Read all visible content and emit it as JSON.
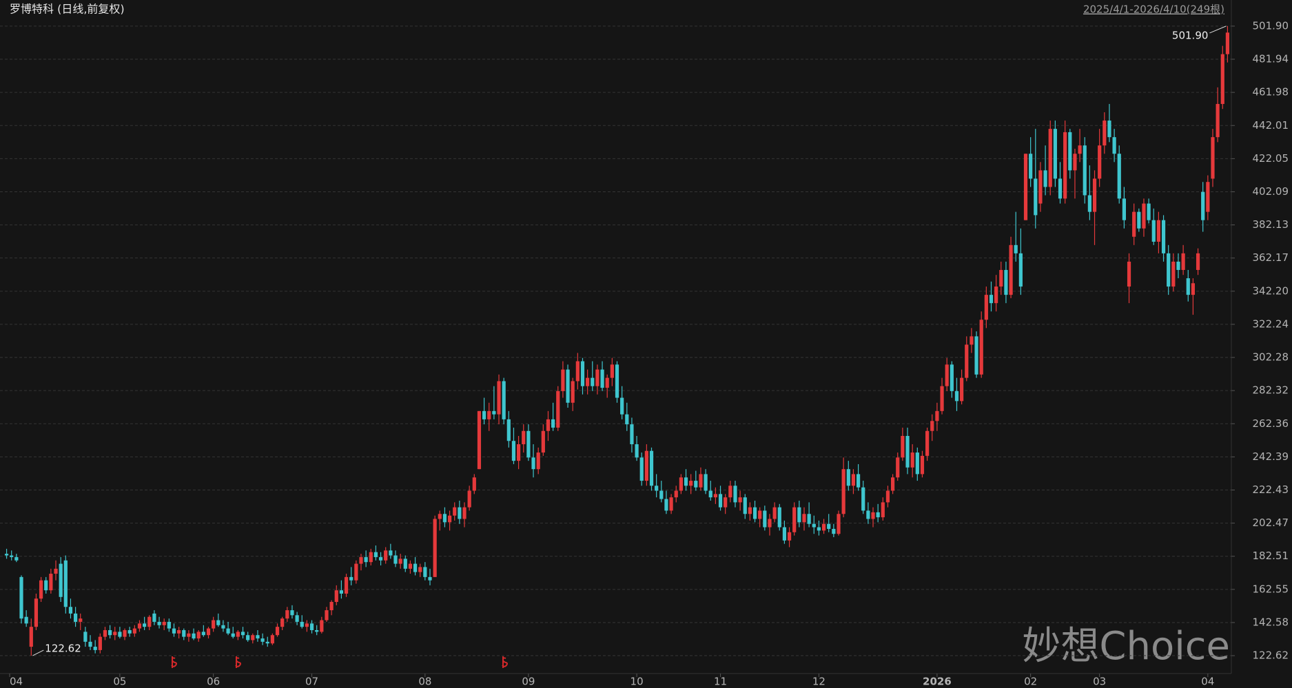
{
  "chart_data": {
    "type": "candlestick",
    "title": "罗博特科 (日线,前复权)",
    "range_text": "2025/4/1-2026/4/10(249根)",
    "watermark": "妙想Choice",
    "max_label": "501.90",
    "min_label": "122.62",
    "up_color": "#e5393b",
    "down_color": "#3fc6cf",
    "grid": true,
    "ylim": [
      113.1,
      508.5
    ],
    "yticks": [
      {
        "value": 501.9,
        "label": "501.90"
      },
      481.94,
      461.98,
      442.01,
      422.05,
      402.09,
      382.13,
      362.17,
      {
        "value": 342.2,
        "label": "342.20"
      },
      322.24,
      302.28,
      282.32,
      262.36,
      242.39,
      222.43,
      202.47,
      182.51,
      162.55,
      142.58,
      122.62
    ],
    "xticks": [
      {
        "value": 0,
        "label": "04"
      },
      {
        "value": 23,
        "label": "05"
      },
      {
        "value": 42,
        "label": "06"
      },
      {
        "value": 62,
        "label": "07"
      },
      {
        "value": 85,
        "label": "08"
      },
      {
        "value": 106,
        "label": "09"
      },
      {
        "value": 128,
        "label": "10"
      },
      {
        "value": 145,
        "label": "11"
      },
      {
        "value": 165,
        "label": "12"
      },
      {
        "value": 189,
        "label": "2026"
      },
      {
        "value": 208,
        "label": "02"
      },
      {
        "value": 222,
        "label": "03"
      },
      {
        "value": 244,
        "label": "04"
      }
    ],
    "ohlc": [
      [
        184,
        187,
        181,
        183
      ],
      [
        183,
        186,
        180,
        182
      ],
      [
        182,
        184,
        179,
        180
      ],
      [
        170,
        171,
        142,
        145
      ],
      [
        146,
        150,
        140,
        142
      ],
      [
        128,
        145,
        122.62,
        140
      ],
      [
        140,
        160,
        138,
        157
      ],
      [
        157,
        170,
        155,
        168
      ],
      [
        168,
        170,
        160,
        162
      ],
      [
        162,
        175,
        160,
        172
      ],
      [
        172,
        180,
        168,
        175
      ],
      [
        178,
        182,
        155,
        158
      ],
      [
        180,
        183,
        148,
        152
      ],
      [
        152,
        157,
        145,
        148
      ],
      [
        148,
        152,
        140,
        143
      ],
      [
        143,
        148,
        138,
        145
      ],
      [
        137,
        140,
        128,
        131
      ],
      [
        131,
        135,
        126,
        128
      ],
      [
        128,
        132,
        124,
        126
      ],
      [
        126,
        136,
        124,
        134
      ],
      [
        134,
        140,
        132,
        138
      ],
      [
        138,
        141,
        133,
        135
      ],
      [
        135,
        140,
        132,
        137
      ],
      [
        137,
        140,
        133,
        134
      ],
      [
        134,
        139,
        132,
        138
      ],
      [
        138,
        140,
        134,
        136
      ],
      [
        136,
        141,
        134,
        139
      ],
      [
        139,
        144,
        137,
        142
      ],
      [
        142,
        146,
        138,
        140
      ],
      [
        140,
        147,
        138,
        146
      ],
      [
        148,
        150,
        141,
        143
      ],
      [
        143,
        146,
        139,
        141
      ],
      [
        141,
        145,
        138,
        143
      ],
      [
        143,
        145,
        137,
        139
      ],
      [
        139,
        142,
        134,
        136
      ],
      [
        136,
        140,
        133,
        138
      ],
      [
        138,
        139,
        132,
        134
      ],
      [
        134,
        138,
        131,
        136
      ],
      [
        136,
        139,
        132,
        133
      ],
      [
        133,
        138,
        131,
        137
      ],
      [
        137,
        141,
        134,
        135
      ],
      [
        135,
        140,
        133,
        139
      ],
      [
        139,
        146,
        137,
        144
      ],
      [
        144,
        148,
        140,
        141
      ],
      [
        141,
        144,
        137,
        139
      ],
      [
        139,
        143,
        135,
        136
      ],
      [
        136,
        140,
        133,
        134
      ],
      [
        134,
        138,
        132,
        137
      ],
      [
        137,
        140,
        133,
        135
      ],
      [
        135,
        137,
        131,
        132
      ],
      [
        132,
        136,
        130,
        135
      ],
      [
        135,
        138,
        131,
        133
      ],
      [
        133,
        136,
        129,
        131
      ],
      [
        131,
        134,
        128,
        130
      ],
      [
        130,
        136,
        129,
        135
      ],
      [
        135,
        142,
        134,
        140
      ],
      [
        140,
        146,
        138,
        145
      ],
      [
        145,
        152,
        143,
        150
      ],
      [
        150,
        153,
        145,
        147
      ],
      [
        147,
        149,
        141,
        143
      ],
      [
        143,
        147,
        139,
        140
      ],
      [
        140,
        144,
        137,
        142
      ],
      [
        142,
        144,
        136,
        138
      ],
      [
        138,
        141,
        135,
        137
      ],
      [
        137,
        146,
        136,
        144
      ],
      [
        144,
        152,
        143,
        150
      ],
      [
        150,
        156,
        147,
        155
      ],
      [
        155,
        165,
        153,
        162
      ],
      [
        162,
        168,
        157,
        160
      ],
      [
        160,
        172,
        158,
        170
      ],
      [
        170,
        176,
        165,
        168
      ],
      [
        168,
        180,
        166,
        178
      ],
      [
        178,
        184,
        174,
        182
      ],
      [
        182,
        186,
        176,
        179
      ],
      [
        179,
        187,
        177,
        185
      ],
      [
        185,
        189,
        180,
        182
      ],
      [
        182,
        185,
        177,
        180
      ],
      [
        180,
        188,
        178,
        186
      ],
      [
        186,
        190,
        181,
        183
      ],
      [
        183,
        186,
        176,
        178
      ],
      [
        178,
        184,
        175,
        181
      ],
      [
        181,
        183,
        173,
        175
      ],
      [
        175,
        180,
        172,
        178
      ],
      [
        178,
        182,
        171,
        173
      ],
      [
        173,
        178,
        170,
        176
      ],
      [
        176,
        179,
        168,
        170
      ],
      [
        170,
        175,
        165,
        168
      ],
      [
        170,
        207,
        170,
        205
      ],
      [
        205,
        210,
        198,
        208
      ],
      [
        208,
        212,
        200,
        203
      ],
      [
        203,
        210,
        198,
        207
      ],
      [
        207,
        215,
        204,
        212
      ],
      [
        212,
        216,
        202,
        205
      ],
      [
        205,
        215,
        200,
        212
      ],
      [
        212,
        225,
        210,
        222
      ],
      [
        222,
        232,
        220,
        230
      ],
      [
        235,
        270,
        235,
        270
      ],
      [
        270,
        278,
        262,
        265
      ],
      [
        265,
        275,
        258,
        270
      ],
      [
        270,
        285,
        265,
        268
      ],
      [
        268,
        292,
        262,
        288
      ],
      [
        288,
        290,
        262,
        265
      ],
      [
        265,
        270,
        248,
        252
      ],
      [
        252,
        260,
        238,
        240
      ],
      [
        240,
        255,
        235,
        250
      ],
      [
        250,
        262,
        245,
        258
      ],
      [
        258,
        262,
        240,
        242
      ],
      [
        242,
        250,
        230,
        235
      ],
      [
        235,
        248,
        232,
        245
      ],
      [
        245,
        262,
        243,
        258
      ],
      [
        258,
        270,
        252,
        265
      ],
      [
        265,
        275,
        258,
        260
      ],
      [
        260,
        285,
        258,
        282
      ],
      [
        282,
        300,
        278,
        295
      ],
      [
        295,
        298,
        272,
        275
      ],
      [
        275,
        290,
        270,
        288
      ],
      [
        288,
        305,
        283,
        300
      ],
      [
        300,
        302,
        280,
        285
      ],
      [
        285,
        295,
        280,
        290
      ],
      [
        290,
        300,
        282,
        285
      ],
      [
        285,
        298,
        280,
        295
      ],
      [
        295,
        300,
        282,
        284
      ],
      [
        284,
        292,
        278,
        290
      ],
      [
        290,
        302,
        285,
        298
      ],
      [
        298,
        300,
        275,
        278
      ],
      [
        278,
        285,
        265,
        268
      ],
      [
        268,
        275,
        258,
        262
      ],
      [
        262,
        266,
        245,
        250
      ],
      [
        250,
        255,
        240,
        242
      ],
      [
        242,
        245,
        225,
        228
      ],
      [
        228,
        250,
        225,
        246
      ],
      [
        246,
        248,
        222,
        225
      ],
      [
        225,
        232,
        218,
        222
      ],
      [
        222,
        228,
        215,
        217
      ],
      [
        217,
        222,
        208,
        210
      ],
      [
        210,
        220,
        208,
        218
      ],
      [
        218,
        225,
        215,
        222
      ],
      [
        222,
        232,
        220,
        230
      ],
      [
        230,
        235,
        222,
        225
      ],
      [
        225,
        232,
        220,
        228
      ],
      [
        228,
        234,
        222,
        224
      ],
      [
        224,
        236,
        222,
        232
      ],
      [
        232,
        235,
        220,
        222
      ],
      [
        222,
        228,
        216,
        218
      ],
      [
        218,
        224,
        214,
        220
      ],
      [
        220,
        225,
        210,
        212
      ],
      [
        212,
        220,
        208,
        218
      ],
      [
        218,
        228,
        215,
        225
      ],
      [
        225,
        228,
        212,
        215
      ],
      [
        215,
        222,
        210,
        218
      ],
      [
        218,
        220,
        205,
        208
      ],
      [
        208,
        215,
        204,
        212
      ],
      [
        212,
        216,
        203,
        205
      ],
      [
        205,
        212,
        200,
        210
      ],
      [
        210,
        213,
        198,
        200
      ],
      [
        200,
        208,
        195,
        205
      ],
      [
        205,
        215,
        203,
        212
      ],
      [
        212,
        214,
        198,
        200
      ],
      [
        200,
        204,
        190,
        192
      ],
      [
        192,
        200,
        188,
        197
      ],
      [
        197,
        215,
        195,
        212
      ],
      [
        212,
        216,
        200,
        203
      ],
      [
        203,
        212,
        198,
        208
      ],
      [
        208,
        215,
        200,
        202
      ],
      [
        202,
        207,
        196,
        200
      ],
      [
        200,
        204,
        195,
        198
      ],
      [
        198,
        205,
        196,
        202
      ],
      [
        202,
        208,
        197,
        199
      ],
      [
        199,
        202,
        194,
        196
      ],
      [
        196,
        210,
        195,
        208
      ],
      [
        208,
        242,
        206,
        235
      ],
      [
        235,
        240,
        222,
        225
      ],
      [
        225,
        235,
        220,
        232
      ],
      [
        232,
        238,
        222,
        224
      ],
      [
        224,
        228,
        208,
        210
      ],
      [
        210,
        215,
        202,
        205
      ],
      [
        205,
        212,
        200,
        209
      ],
      [
        209,
        214,
        203,
        206
      ],
      [
        206,
        218,
        204,
        215
      ],
      [
        215,
        225,
        212,
        222
      ],
      [
        222,
        232,
        220,
        230
      ],
      [
        230,
        245,
        228,
        242
      ],
      [
        242,
        260,
        240,
        255
      ],
      [
        255,
        260,
        232,
        236
      ],
      [
        236,
        250,
        230,
        245
      ],
      [
        245,
        248,
        228,
        232
      ],
      [
        232,
        246,
        230,
        243
      ],
      [
        243,
        260,
        240,
        258
      ],
      [
        258,
        268,
        252,
        264
      ],
      [
        264,
        275,
        258,
        270
      ],
      [
        270,
        290,
        268,
        285
      ],
      [
        285,
        302,
        282,
        298
      ],
      [
        298,
        300,
        278,
        282
      ],
      [
        282,
        290,
        270,
        276
      ],
      [
        276,
        295,
        274,
        290
      ],
      [
        290,
        315,
        288,
        310
      ],
      [
        310,
        320,
        305,
        315
      ],
      [
        315,
        318,
        290,
        292
      ],
      [
        292,
        330,
        290,
        325
      ],
      [
        325,
        345,
        320,
        340
      ],
      [
        340,
        348,
        330,
        335
      ],
      [
        335,
        352,
        330,
        345
      ],
      [
        345,
        360,
        340,
        355
      ],
      [
        355,
        360,
        335,
        340
      ],
      [
        340,
        375,
        338,
        370
      ],
      [
        370,
        390,
        360,
        365
      ],
      [
        365,
        380,
        340,
        345
      ],
      [
        385,
        425,
        385,
        425
      ],
      [
        425,
        435,
        405,
        410
      ],
      [
        410,
        440,
        380,
        388
      ],
      [
        395,
        420,
        390,
        415
      ],
      [
        415,
        430,
        400,
        405
      ],
      [
        405,
        445,
        400,
        440
      ],
      [
        440,
        445,
        405,
        410
      ],
      [
        410,
        420,
        395,
        398
      ],
      [
        398,
        445,
        395,
        438
      ],
      [
        438,
        440,
        410,
        415
      ],
      [
        415,
        428,
        398,
        425
      ],
      [
        425,
        440,
        420,
        430
      ],
      [
        430,
        435,
        395,
        400
      ],
      [
        400,
        418,
        385,
        390
      ],
      [
        390,
        415,
        370,
        410
      ],
      [
        410,
        440,
        405,
        430
      ],
      [
        430,
        450,
        425,
        445
      ],
      [
        445,
        455,
        432,
        435
      ],
      [
        435,
        440,
        420,
        425
      ],
      [
        425,
        430,
        395,
        398
      ],
      [
        398,
        405,
        380,
        385
      ],
      [
        345,
        365,
        335,
        360
      ],
      [
        375,
        395,
        370,
        390
      ],
      [
        390,
        392,
        378,
        380
      ],
      [
        380,
        398,
        375,
        395
      ],
      [
        395,
        398,
        383,
        385
      ],
      [
        385,
        392,
        370,
        372
      ],
      [
        372,
        390,
        365,
        385
      ],
      [
        385,
        388,
        360,
        365
      ],
      [
        365,
        370,
        340,
        345
      ],
      [
        345,
        365,
        342,
        360
      ],
      [
        360,
        365,
        350,
        355
      ],
      [
        355,
        370,
        352,
        365
      ],
      [
        350,
        355,
        336,
        340
      ],
      [
        340,
        350,
        328,
        347
      ],
      [
        355,
        368,
        352,
        365
      ],
      [
        402,
        408,
        378,
        385
      ],
      [
        390,
        412,
        385,
        408
      ],
      [
        410,
        440,
        405,
        435
      ],
      [
        435,
        465,
        432,
        455
      ],
      [
        455,
        490,
        452,
        485
      ],
      [
        485,
        501.9,
        480,
        498
      ]
    ]
  }
}
